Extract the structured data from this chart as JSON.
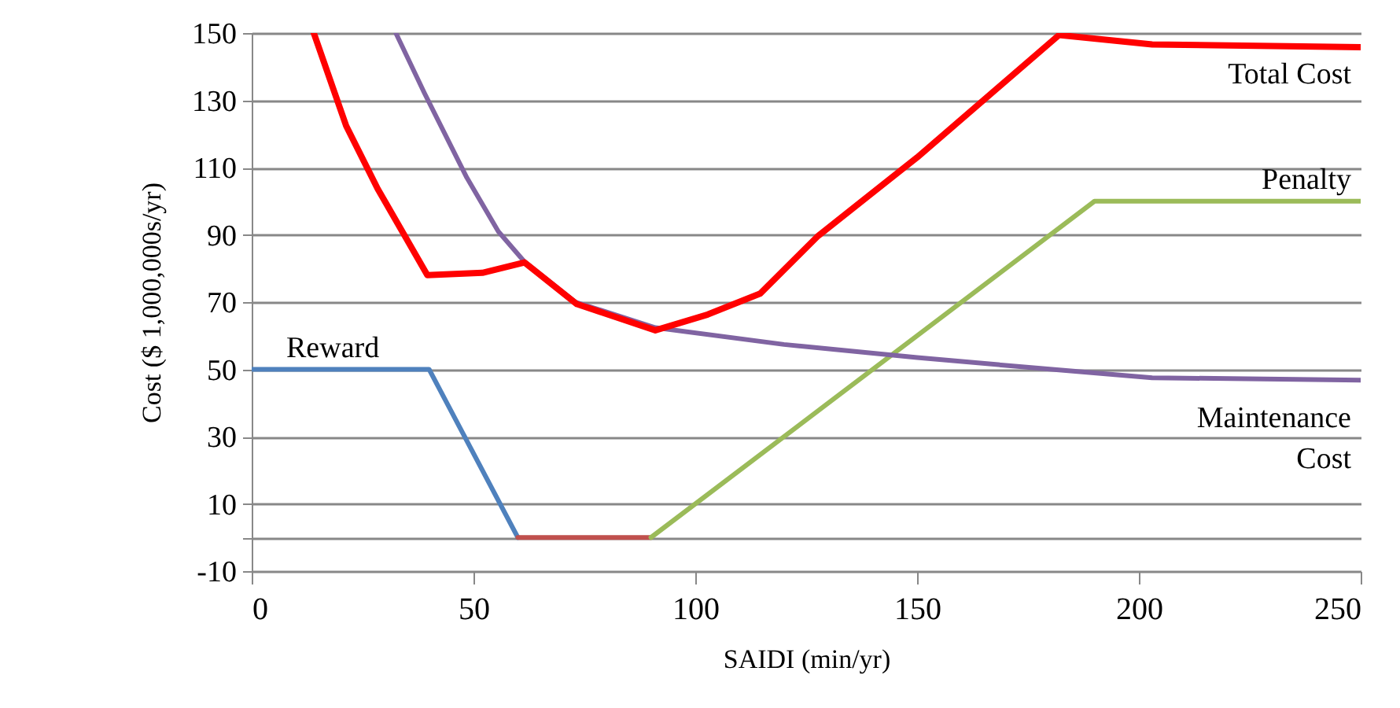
{
  "chart_data": {
    "type": "line",
    "xlabel": "SAIDI (min/yr)",
    "ylabel": "Cost ($ 1,000,000s/yr)",
    "xlim": [
      0,
      250
    ],
    "xticks": [
      0,
      50,
      100,
      150,
      200,
      250
    ],
    "ylim": [
      -10,
      150
    ],
    "yticks": [
      -10,
      {
        "value": 0,
        "label": null
      },
      10,
      30,
      50,
      70,
      90,
      110,
      130,
      150
    ],
    "grid": "y",
    "series": [
      {
        "name": "Reward",
        "color": "#4f81bd",
        "x": [
          0,
          40,
          60
        ],
        "values": [
          50,
          50,
          0
        ]
      },
      {
        "color": "#c0504d",
        "x": [
          60,
          90
        ],
        "values": [
          0,
          0
        ]
      },
      {
        "name": "Penalty",
        "color": "#9bbb59",
        "x": [
          90,
          190,
          250
        ],
        "values": [
          0,
          100,
          100
        ]
      },
      {
        "name": "Maintenance Cost",
        "color": "#8064a2",
        "x": [
          32.5,
          39,
          48.5,
          55.6,
          61.5,
          73,
          91,
          120,
          150,
          182,
          203,
          250
        ],
        "values": [
          150,
          132,
          107,
          91,
          82,
          70,
          62.4,
          57.4,
          53.5,
          49.8,
          47.5,
          46.8
        ]
      },
      {
        "name": "Total Cost",
        "color": "#ff0000",
        "x": [
          14,
          21.3,
          28.4,
          39.6,
          52,
          61.5,
          73.3,
          91,
          102.8,
          114.6,
          127.7,
          150,
          182,
          203,
          250
        ],
        "values": [
          150,
          122.4,
          103.7,
          78,
          78.7,
          81.8,
          69.4,
          61.6,
          66.3,
          72.5,
          89.7,
          113,
          149.4,
          146.6,
          145.8
        ]
      }
    ]
  }
}
